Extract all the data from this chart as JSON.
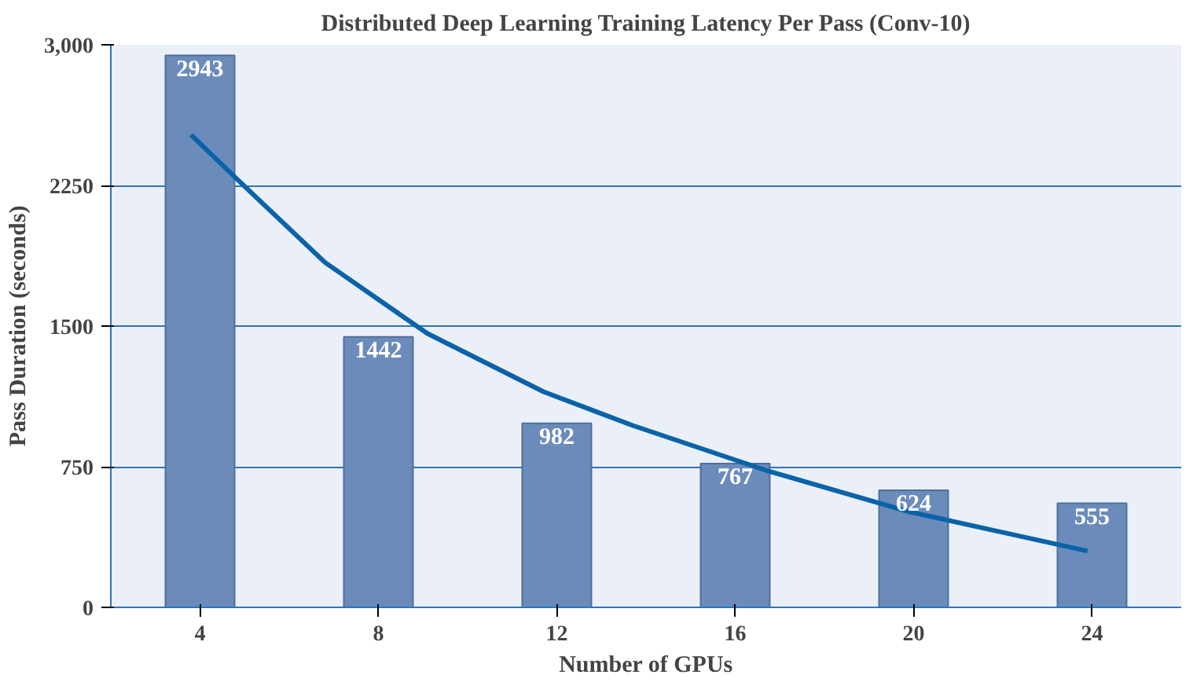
{
  "chart_data": {
    "type": "bar",
    "title": "Distributed Deep Learning Training Latency Per Pass (Conv-10)",
    "xlabel": "Number of GPUs",
    "ylabel": "Pass Duration (seconds)",
    "x": [
      4,
      8,
      12,
      16,
      20,
      24
    ],
    "xlim": [
      2,
      26
    ],
    "xticks": [
      4,
      8,
      12,
      16,
      20,
      24
    ],
    "ylim": [
      0,
      3000
    ],
    "yticks": [
      0,
      750,
      1500,
      2250,
      {
        "value": 3000,
        "label": "3,000"
      }
    ],
    "grid": "y",
    "series": [
      {
        "color": "#6b8cbb",
        "values": [
          2943,
          1442,
          982,
          767,
          624,
          555
        ],
        "value_labels": [
          "2943",
          "1442",
          "982",
          "767",
          "624",
          "555"
        ]
      },
      {
        "type": "line",
        "color": "#0a63a8",
        "marker": "none",
        "line_style": "solid",
        "x": [
          3.8,
          4.8,
          6.8,
          9.1,
          11.7,
          13.7,
          16.7,
          19.9,
          23.9
        ],
        "values": [
          2520,
          2290,
          1840,
          1460,
          1150,
          970,
          730,
          510,
          300
        ]
      }
    ]
  }
}
